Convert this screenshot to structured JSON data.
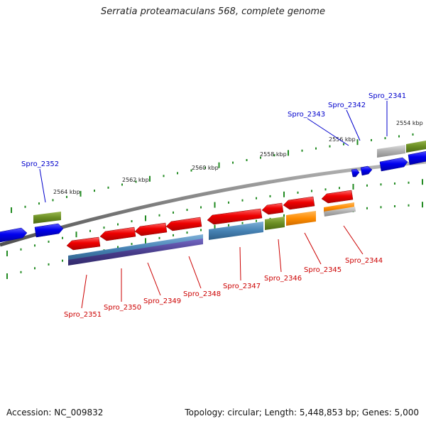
{
  "title": "Serratia proteamaculans 568, complete genome",
  "accession": "Accession: NC_009832",
  "summary": "Topology: circular; Length: 5,448,853 bp; Genes: 5,000",
  "scale_labels": [
    "2554 kbp",
    "2556 kbp",
    "2558 kbp",
    "2560 kbp",
    "2562 kbp",
    "2564 kbp"
  ],
  "top_genes": [
    "Spro_2341",
    "Spro_2342",
    "Spro_2343",
    "Spro_2352"
  ],
  "bottom_genes": [
    "Spro_2344",
    "Spro_2345",
    "Spro_2346",
    "Spro_2347",
    "Spro_2348",
    "Spro_2349",
    "Spro_2350",
    "Spro_2351"
  ],
  "colors": {
    "forward_gene": "#0000ee",
    "reverse_gene": "#ee0000",
    "cog_green": "#6b8e23",
    "cog_gray": "#b0b0b0",
    "cog_steelblue": "#4682b4",
    "cog_slate": "#483d8b",
    "cog_orange": "#ff8c00",
    "tick": "#228b22",
    "backbone": "#808080",
    "label_forward": "#0000cc",
    "label_reverse": "#cc0000"
  }
}
